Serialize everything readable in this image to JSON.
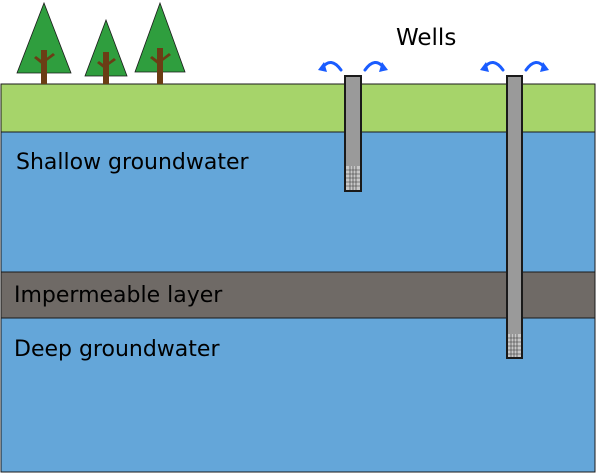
{
  "labels": {
    "wells": "Wells",
    "shallow_groundwater": "Shallow groundwater",
    "impermeable_layer": "Impermeable layer",
    "deep_groundwater": "Deep groundwater"
  },
  "colors": {
    "sky": "#ffffff",
    "grass": "#a6d46a",
    "water": "#64a6d9",
    "impermeable": "#6f6a66",
    "well_casing": "#9a9a9a",
    "well_screen": "#c8c8c8",
    "arrow": "#1a5cff",
    "tree_green": "#2f9e3e",
    "tree_trunk": "#6b3d15",
    "outline": "#1a1a1a"
  },
  "icons": {
    "tree": "tree-icon",
    "outflow_arrow": "outflow-arrow-icon"
  }
}
